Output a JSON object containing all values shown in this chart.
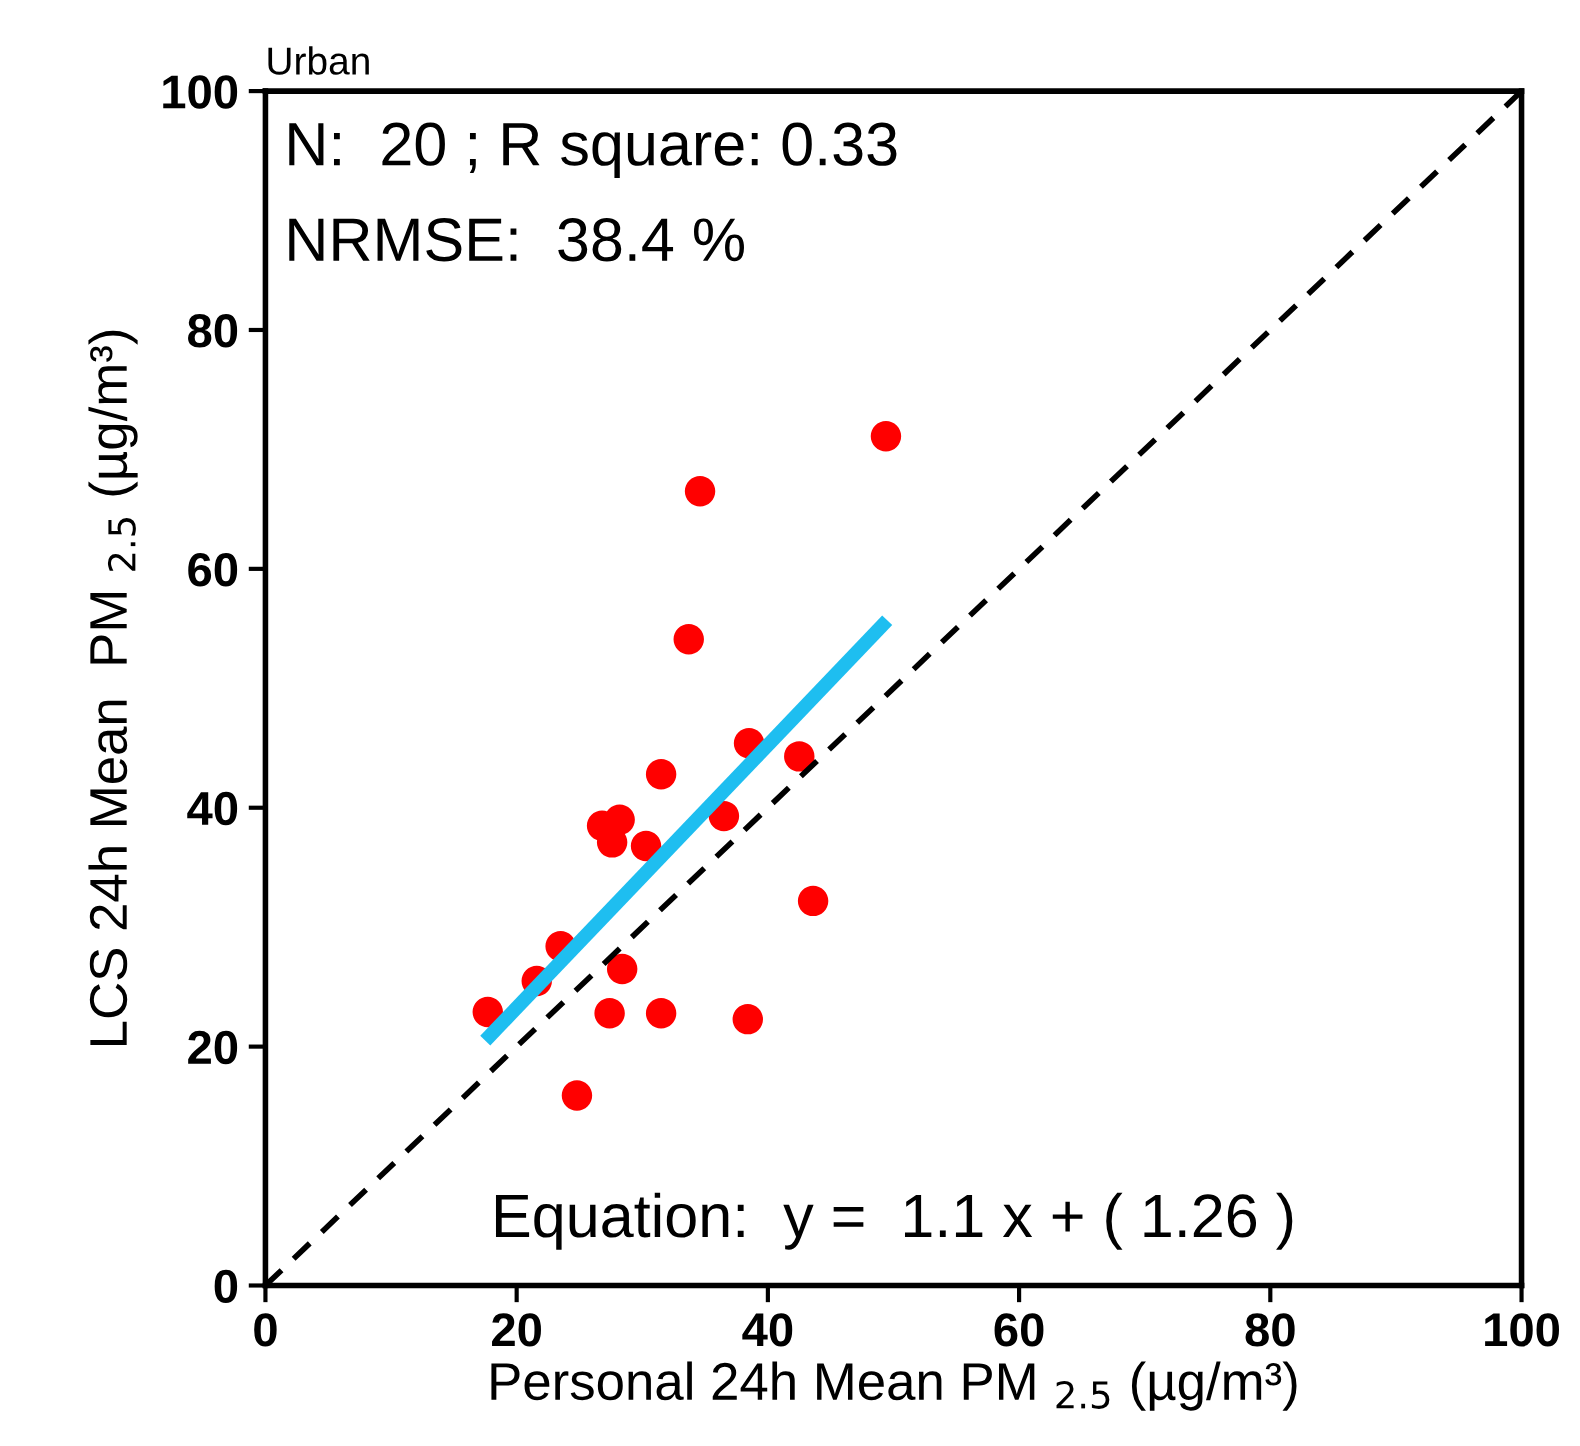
{
  "chart_data": {
    "type": "scatter",
    "title": "Urban",
    "xlabel": "Personal 24h Mean PM $_{2.5}$ (µg/m³)",
    "ylabel": "LCS 24h Mean  PM $_{2.5}$ (µg/m³)",
    "xlim": [
      0,
      100
    ],
    "ylim": [
      0,
      100
    ],
    "xticks": [
      0,
      20,
      40,
      60,
      80,
      100
    ],
    "yticks": [
      0,
      20,
      40,
      60,
      80,
      100
    ],
    "grid": false,
    "legend": false,
    "annotations": [
      "N:  20 ; R square: 0.33",
      "NRMSE:  38.4 %",
      "Equation:  y =  1.1 x + ( 1.26 )"
    ],
    "series": [
      {
        "type": "line",
        "color": "#000000",
        "line_style": "dashed",
        "marker": "none",
        "x": [
          0,
          100
        ],
        "values": [
          0,
          100
        ]
      },
      {
        "type": "line",
        "color": "#1ebef0",
        "line_style": "solid",
        "marker": "none",
        "x": [
          17.5,
          49.5
        ],
        "values": [
          20.5,
          55.7
        ]
      },
      {
        "color": "#ff0000",
        "marker": "circle",
        "x": [
          17.7,
          21.6,
          23.5,
          24.8,
          27.4,
          28.4,
          26.8,
          28.2,
          27.6,
          30.3,
          31.5,
          31.5,
          33.7,
          34.6,
          36.5,
          38.5,
          38.4,
          42.5,
          43.6,
          49.4
        ],
        "values": [
          22.9,
          25.5,
          28.4,
          15.9,
          22.8,
          26.5,
          38.5,
          39.0,
          37.1,
          36.8,
          22.8,
          42.8,
          54.1,
          66.5,
          39.3,
          45.4,
          22.3,
          44.3,
          32.2,
          71.1
        ]
      }
    ]
  }
}
